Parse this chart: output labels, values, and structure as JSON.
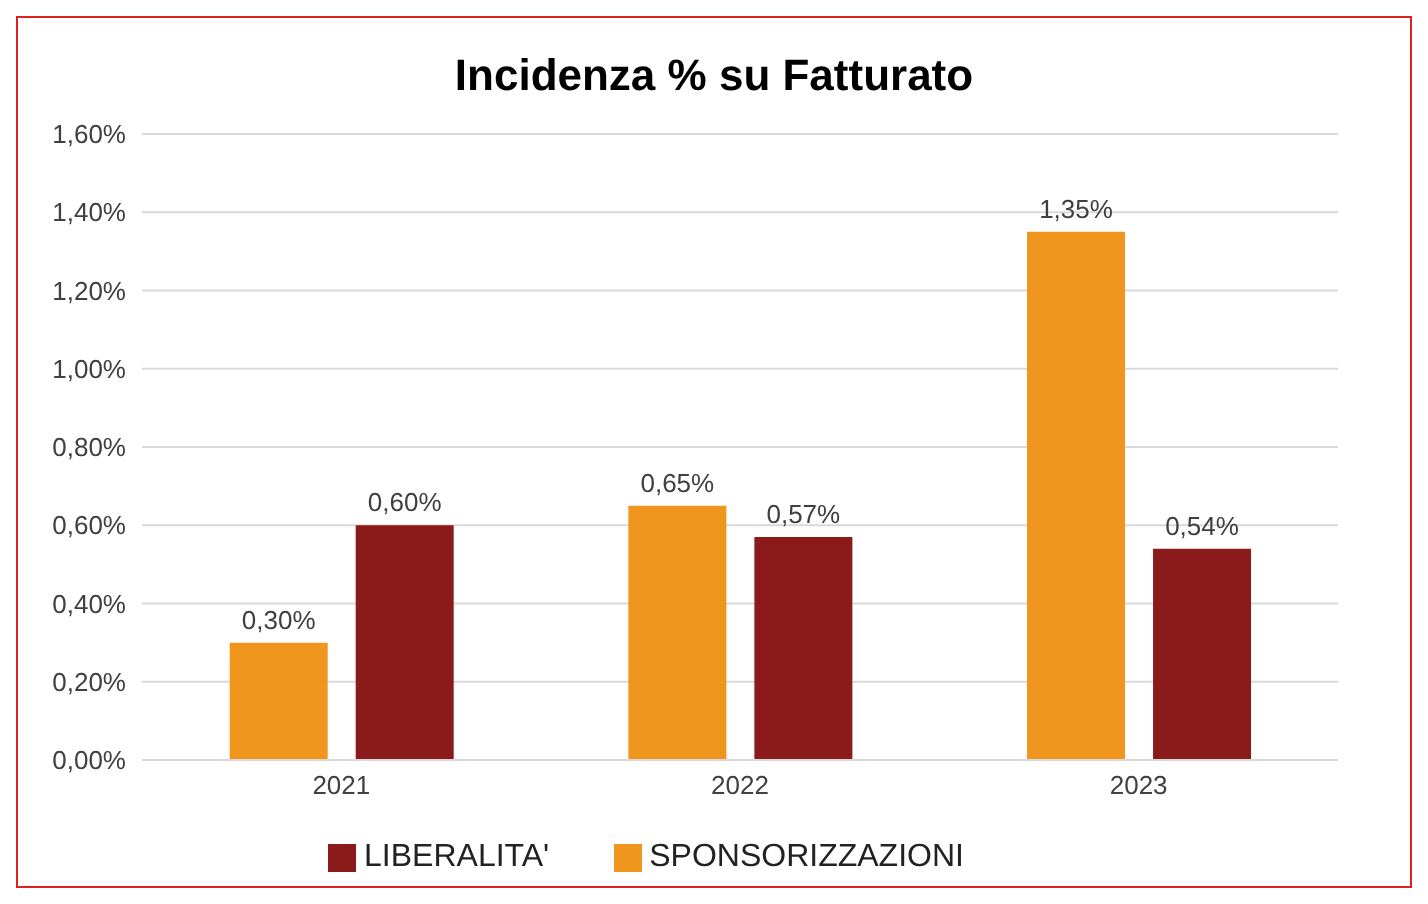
{
  "chart_data": {
    "type": "bar",
    "title": "Incidenza % su Fatturato",
    "categories": [
      "2021",
      "2022",
      "2023"
    ],
    "series": [
      {
        "name": "SPONSORIZZAZIONI",
        "color": "#f0961e",
        "values": [
          0.3,
          0.65,
          1.35
        ],
        "value_labels": [
          "0,30%",
          "0,65%",
          "1,35%"
        ]
      },
      {
        "name": "LIBERALITA'",
        "color": "#8b1a1a",
        "values": [
          0.6,
          0.57,
          0.54
        ],
        "value_labels": [
          "0,60%",
          "0,57%",
          "0,54%"
        ]
      }
    ],
    "ylim": [
      0,
      1.6
    ],
    "yticks": [
      {
        "value": 0,
        "label": "0,00%"
      },
      {
        "value": 0.2,
        "label": "0,20%"
      },
      {
        "value": 0.4,
        "label": "0,40%"
      },
      {
        "value": 0.6,
        "label": "0,60%"
      },
      {
        "value": 0.8,
        "label": "0,80%"
      },
      {
        "value": 1.0,
        "label": "1,00%"
      },
      {
        "value": 1.2,
        "label": "1,20%"
      },
      {
        "value": 1.4,
        "label": "1,40%"
      },
      {
        "value": 1.6,
        "label": "1,60%"
      }
    ],
    "grid": "y",
    "legend": "bottom"
  }
}
